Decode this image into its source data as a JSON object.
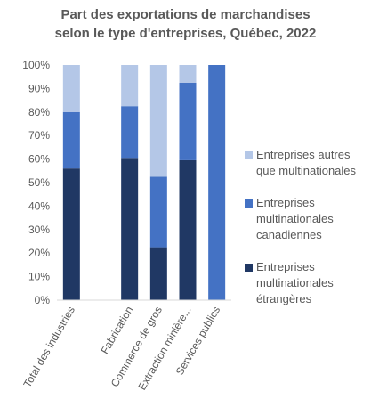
{
  "chart_data": {
    "type": "bar",
    "stacked": true,
    "title": [
      "Part des exportations de marchandises",
      "selon le type d'entreprises, Québec, 2022"
    ],
    "categories": [
      "Total des industries",
      "",
      "Fabrication",
      "Commerce de gros",
      "Extraction minière...",
      "Services publics"
    ],
    "series": [
      {
        "name": "Entreprises multinationales étrangères",
        "color": "#203864",
        "values": [
          56,
          null,
          60.5,
          22.5,
          59.5,
          0
        ]
      },
      {
        "name": "Entreprises multinationales canadiennes",
        "color": "#4472C4",
        "values": [
          24,
          null,
          22,
          30,
          33,
          100
        ]
      },
      {
        "name": "Entreprises autres que multinationales",
        "color": "#B4C7E7",
        "values": [
          20,
          null,
          17.5,
          47.5,
          7.5,
          0
        ]
      }
    ],
    "yticks": [
      "0%",
      "10%",
      "20%",
      "30%",
      "40%",
      "50%",
      "60%",
      "70%",
      "80%",
      "90%",
      "100%"
    ],
    "ylim": [
      0,
      100
    ],
    "legend_position": "right",
    "legend_order": [
      2,
      1,
      0
    ],
    "grid": false
  }
}
